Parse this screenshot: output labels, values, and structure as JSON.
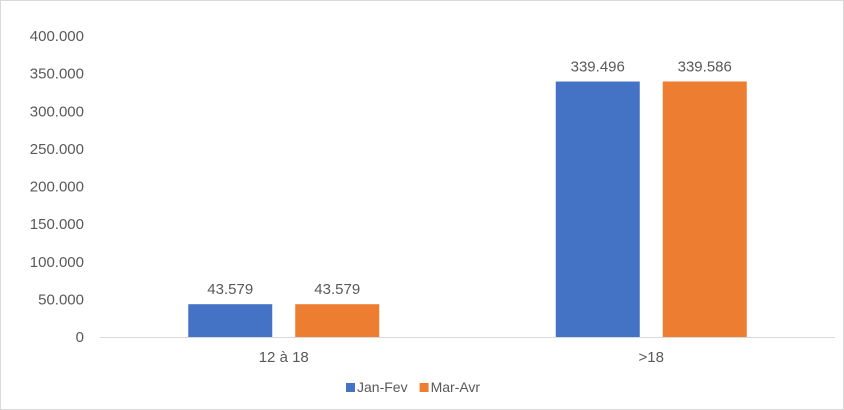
{
  "chart_data": {
    "type": "bar",
    "title": "",
    "xlabel": "",
    "ylabel": "",
    "categories": [
      "12 à 18",
      ">18"
    ],
    "series": [
      {
        "name": "Jan-Fev",
        "values": [
          43579,
          339496
        ],
        "labels": [
          "43.579",
          "339.496"
        ],
        "color": "#4472c4"
      },
      {
        "name": "Mar-Avr",
        "values": [
          43579,
          339586
        ],
        "labels": [
          "43.579",
          "339.586"
        ],
        "color": "#ed7d31"
      }
    ],
    "ylim": [
      0,
      400000
    ],
    "yticks": [
      0,
      50000,
      100000,
      150000,
      200000,
      250000,
      300000,
      350000,
      400000
    ],
    "ytick_labels": [
      "0",
      "50.000",
      "100.000",
      "150.000",
      "200.000",
      "250.000",
      "300.000",
      "350.000",
      "400.000"
    ],
    "grid": false,
    "legend_position": "bottom"
  }
}
